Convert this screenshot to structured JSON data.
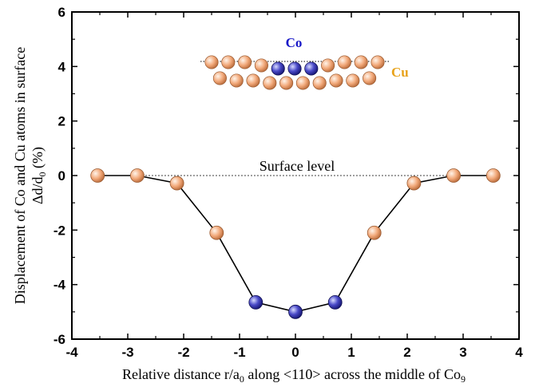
{
  "chart_data": {
    "type": "line",
    "xlabel_parts": [
      "Relative distance r/a",
      "0",
      " along <110> across the middle of Co",
      "9"
    ],
    "ylabel_line1": "Displacement of Co and Cu atoms in surface",
    "ylabel_parts": [
      "Δd/d",
      "0",
      " (%)"
    ],
    "xlim": [
      -4,
      4
    ],
    "ylim": [
      -6,
      6
    ],
    "xticks": [
      -4,
      -3,
      -2,
      -1,
      0,
      1,
      2,
      3,
      4
    ],
    "yticks": [
      -6,
      -4,
      -2,
      0,
      2,
      4,
      6
    ],
    "grid": false,
    "series": [
      {
        "points": [
          {
            "x": -3.54,
            "y": 0.0,
            "atom": "Cu"
          },
          {
            "x": -2.83,
            "y": 0.0,
            "atom": "Cu"
          },
          {
            "x": -2.12,
            "y": -0.28,
            "atom": "Cu"
          },
          {
            "x": -1.41,
            "y": -2.1,
            "atom": "Cu"
          },
          {
            "x": -0.71,
            "y": -4.65,
            "atom": "Co"
          },
          {
            "x": 0.0,
            "y": -5.0,
            "atom": "Co"
          },
          {
            "x": 0.71,
            "y": -4.65,
            "atom": "Co"
          },
          {
            "x": 1.41,
            "y": -2.1,
            "atom": "Cu"
          },
          {
            "x": 2.12,
            "y": -0.28,
            "atom": "Cu"
          },
          {
            "x": 2.83,
            "y": 0.0,
            "atom": "Cu"
          },
          {
            "x": 3.54,
            "y": 0.0,
            "atom": "Cu"
          }
        ]
      }
    ],
    "reference_line": {
      "y": 0,
      "label": "Surface level",
      "style": "dotted"
    },
    "inset": {
      "labels": {
        "co": "Co",
        "cu": "Cu"
      },
      "top_row": [
        "Cu",
        "Cu",
        "Cu",
        "Cu",
        "Co",
        "Co",
        "Co",
        "Cu",
        "Cu",
        "Cu",
        "Cu"
      ],
      "bottom_row_count": 10
    },
    "colors": {
      "Cu": "#f2a97a",
      "Co": "#3a3ab0",
      "line": "#000000"
    }
  }
}
